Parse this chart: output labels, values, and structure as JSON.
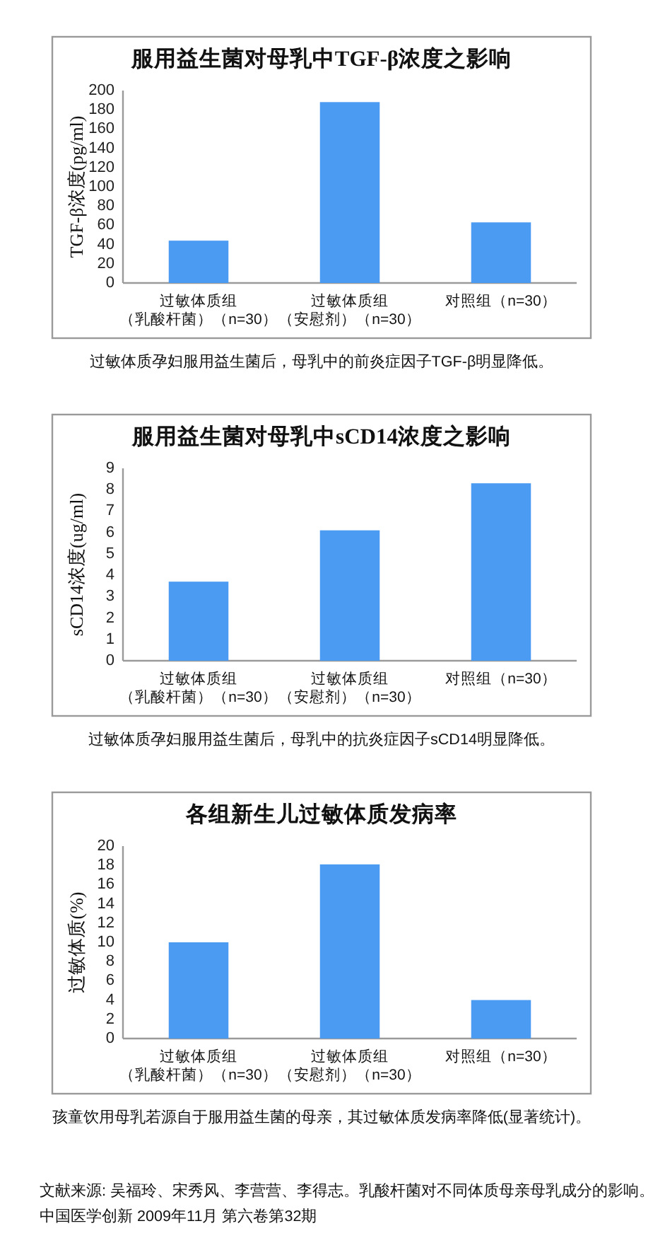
{
  "chart_data": [
    {
      "type": "bar",
      "title": "服用益生菌对母乳中TGF-β浓度之影响",
      "ylabel": "TGF-β浓度(pg/ml)",
      "categories": [
        "过敏体质组（乳酸杆菌）（n=30）",
        "过敏体质组（安慰剂）（n=30）",
        "对照组（n=30）"
      ],
      "values": [
        44,
        188,
        63
      ],
      "color": "#4c9bf2",
      "ylim": [
        0,
        200
      ],
      "yticks": [
        0,
        20,
        40,
        60,
        80,
        100,
        120,
        140,
        160,
        180,
        200
      ],
      "annotations": [
        "过敏体质孕妇服用益生菌后，母乳中的前炎症因子TGF-β明显降低。"
      ]
    },
    {
      "type": "bar",
      "title": "服用益生菌对母乳中sCD14浓度之影响",
      "ylabel": "sCD14浓度(ug/ml)",
      "categories": [
        "过敏体质组（乳酸杆菌）（n=30）",
        "过敏体质组（安慰剂）（n=30）",
        "对照组（n=30）"
      ],
      "values": [
        3.7,
        6.1,
        8.3
      ],
      "color": "#4c9bf2",
      "ylim": [
        0,
        9
      ],
      "yticks": [
        0,
        1,
        2,
        3,
        4,
        5,
        6,
        7,
        8,
        9
      ],
      "annotations": [
        "过敏体质孕妇服用益生菌后，母乳中的抗炎症因子sCD14明显降低。"
      ]
    },
    {
      "type": "bar",
      "title": "各组新生儿过敏体质发病率",
      "ylabel": "过敏体质(%)",
      "categories": [
        "过敏体质组（乳酸杆菌）（n=30）",
        "过敏体质组（安慰剂）（n=30）",
        "对照组（n=30）"
      ],
      "values": [
        10,
        18.1,
        4
      ],
      "color": "#4c9bf2",
      "ylim": [
        0,
        20
      ],
      "yticks": [
        0,
        2,
        4,
        6,
        8,
        10,
        12,
        14,
        16,
        18,
        20
      ],
      "annotations": [
        "孩童饮用母乳若源自于服用益生菌的母亲，其过敏体质发病率降低(显著统计)。",
        "文献来源: 吴福玲、宋秀风、李营营、李得志。乳酸杆菌对不同体质母亲母乳成分的影响。",
        "中国医学创新 2009年11月  第六卷第32期"
      ]
    }
  ]
}
